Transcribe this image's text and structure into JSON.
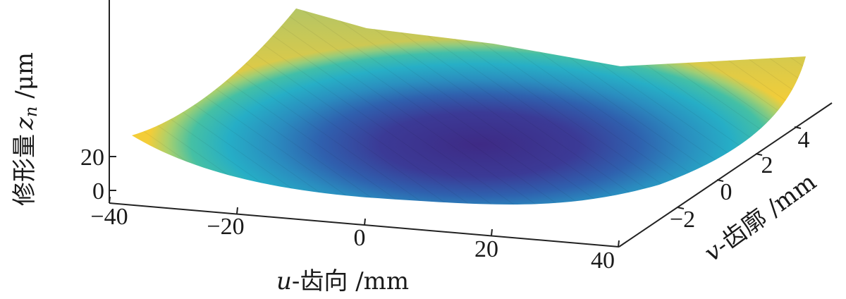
{
  "chart_data": {
    "type": "surface",
    "title": "",
    "xlabel": {
      "var": "u",
      "rest": "-齿向 /mm"
    },
    "ylabel": {
      "var": "v",
      "rest": "-齿廓 /mm"
    },
    "zlabel": {
      "text": "修形量",
      "var": "z",
      "sub": "n",
      "unit": " /μm"
    },
    "x_ticks": [
      "−40",
      "−20",
      "0",
      "20",
      "40"
    ],
    "y_ticks": [
      "−2",
      "0",
      "2",
      "4"
    ],
    "z_ticks": [
      "0",
      "20"
    ],
    "xlim": [
      -40,
      40
    ],
    "ylim": [
      -4,
      5
    ],
    "zlim": [
      0,
      60
    ],
    "grid": false,
    "colormap": [
      "#3e2a85",
      "#3b4a9c",
      "#2b78b8",
      "#21a4c4",
      "#3fbfaa",
      "#9bd07a",
      "#f3ce3a"
    ],
    "surface_samples": [
      {
        "u": -40,
        "v": -4,
        "z": 26
      },
      {
        "u": -40,
        "v": 5,
        "z": 58
      },
      {
        "u": 0,
        "v": 0,
        "z": 4
      },
      {
        "u": 40,
        "v": -4,
        "z": 12
      },
      {
        "u": 40,
        "v": 5,
        "z": 45
      }
    ]
  }
}
